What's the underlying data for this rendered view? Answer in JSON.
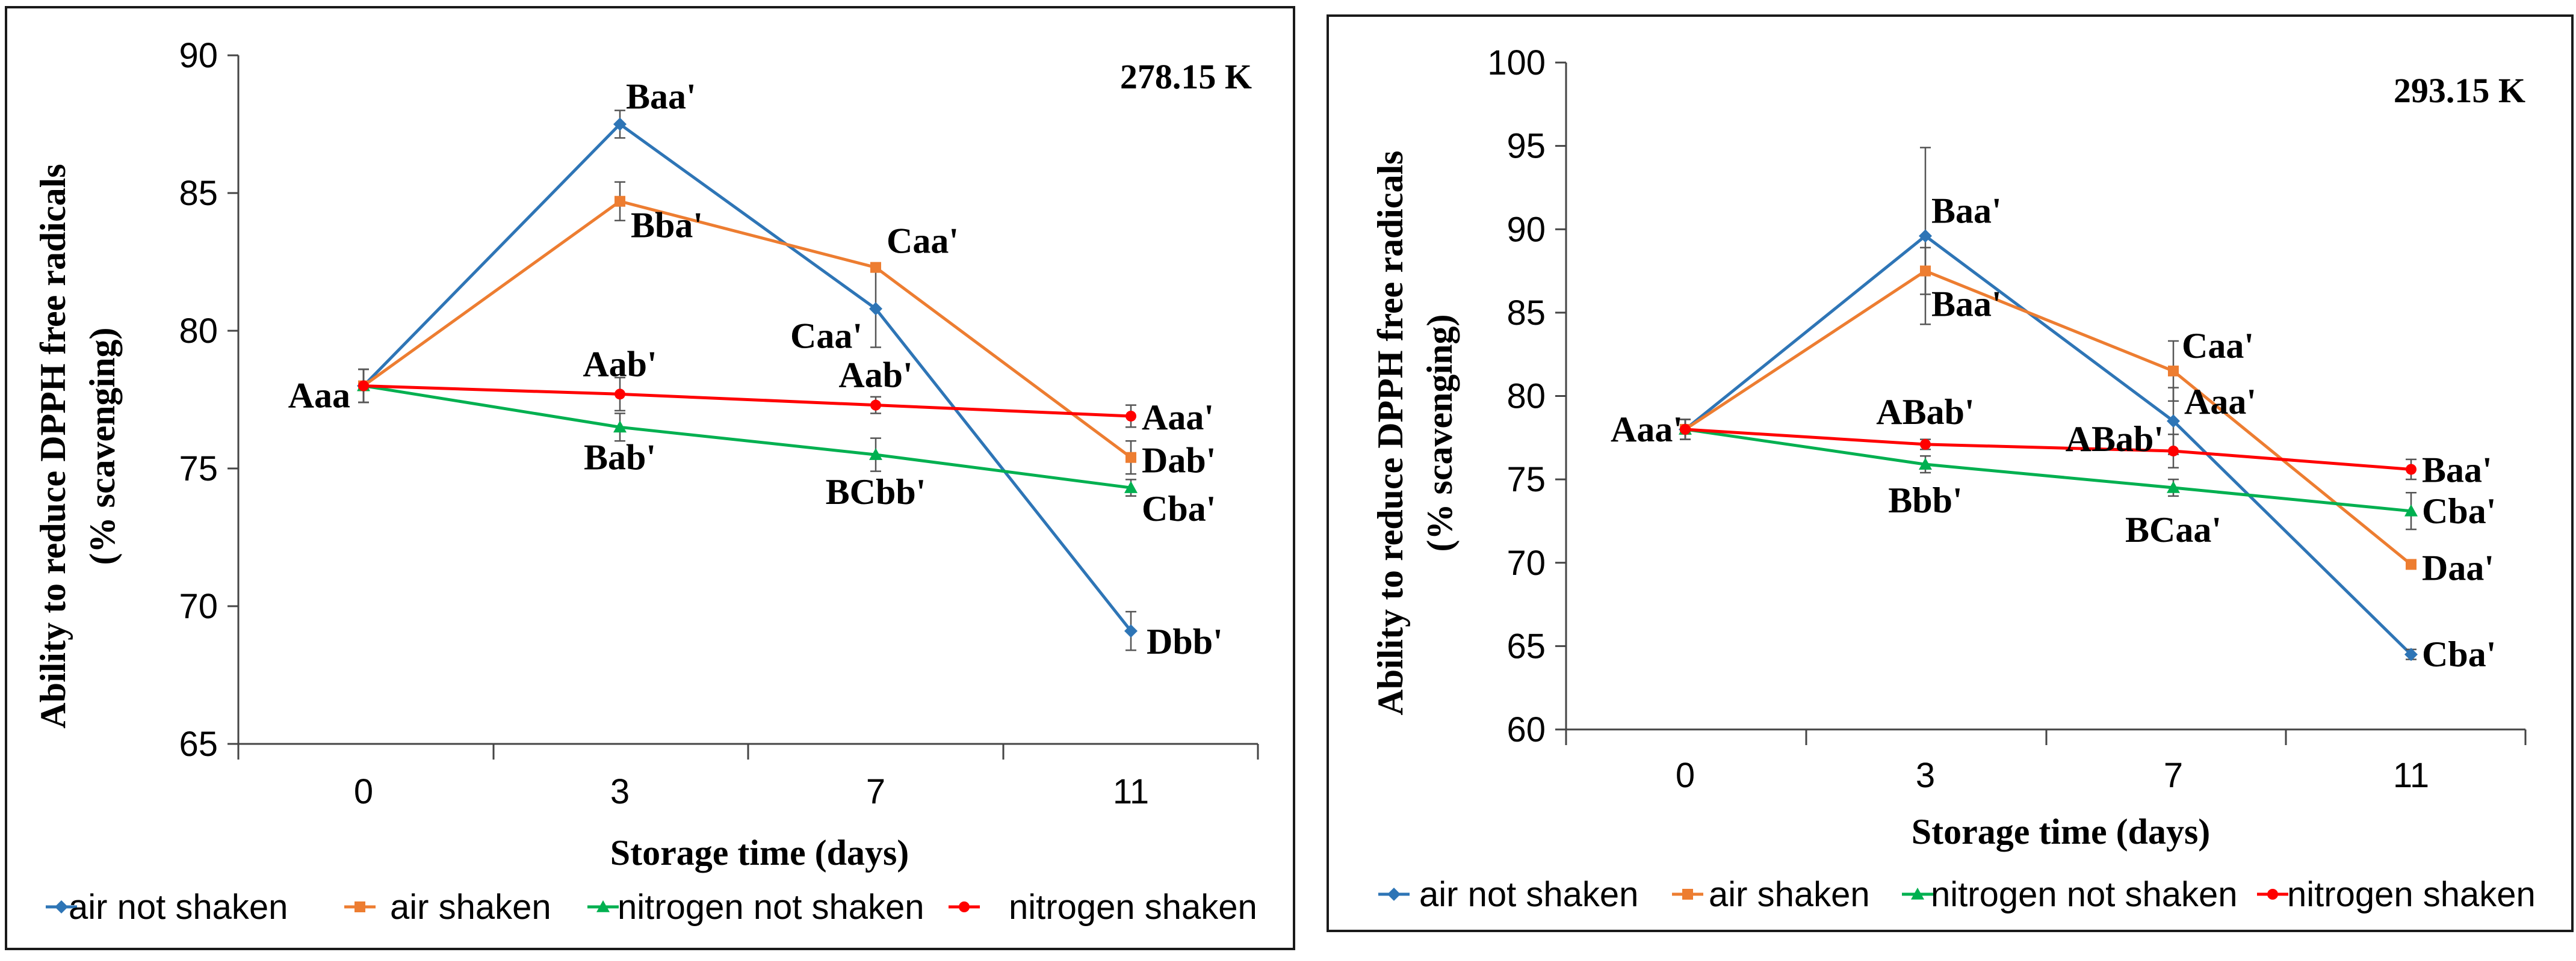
{
  "chart_data": [
    {
      "type": "line",
      "title": "278.15 K",
      "xlabel": "Storage time (days)",
      "ylabel": [
        "Ability to reduce DPPH free radicals",
        "(% scavenging)"
      ],
      "categories": [
        "0",
        "3",
        "7",
        "11"
      ],
      "ylim": [
        65,
        90
      ],
      "yticks": [
        "65",
        "70",
        "75",
        "80",
        "85",
        "90"
      ],
      "series": [
        {
          "name": "air not shaken",
          "color": "#2E75B6",
          "marker": "diamond",
          "values": [
            78.0,
            87.5,
            80.8,
            69.1
          ],
          "errors": [
            0.6,
            0.5,
            1.4,
            0.7
          ],
          "labels": [
            "",
            "Baa'",
            "Caa'",
            "Dbb'"
          ]
        },
        {
          "name": "air shaken",
          "color": "#ED7D31",
          "marker": "square",
          "values": [
            78.0,
            84.7,
            82.3,
            75.4
          ],
          "errors": [
            0.6,
            0.7,
            0.0,
            0.6
          ],
          "labels": [
            "",
            "Bba'",
            "Caa'",
            "Dab'"
          ]
        },
        {
          "name": "nitrogen not shaken",
          "color": "#00B050",
          "marker": "triangle",
          "values": [
            78.0,
            76.5,
            75.5,
            74.3
          ],
          "errors": [
            0.6,
            0.5,
            0.6,
            0.3
          ],
          "labels": [
            "",
            "Bab'",
            "BCbb'",
            "Cba'"
          ]
        },
        {
          "name": "nitrogen shaken",
          "color": "#FF0000",
          "marker": "circle",
          "values": [
            78.0,
            77.7,
            77.3,
            76.9
          ],
          "errors": [
            0.6,
            0.6,
            0.3,
            0.4
          ],
          "labels": [
            "Aaa",
            "Aab'",
            "Aab'",
            "Aaa'"
          ]
        }
      ]
    },
    {
      "type": "line",
      "title": "293.15 K",
      "xlabel": "Storage time (days)",
      "ylabel": [
        "Ability to reduce DPPH free radicals",
        "(% scavenging)"
      ],
      "categories": [
        "0",
        "3",
        "7",
        "11"
      ],
      "ylim": [
        60,
        100
      ],
      "yticks": [
        "60",
        "65",
        "70",
        "75",
        "80",
        "85",
        "90",
        "95",
        "100"
      ],
      "series": [
        {
          "name": "air not shaken",
          "color": "#2E75B6",
          "marker": "diamond",
          "values": [
            78.0,
            89.6,
            78.5,
            64.5
          ],
          "errors": [
            0.6,
            5.3,
            2.0,
            0.3
          ],
          "labels": [
            "",
            "Baa'",
            "Aaa'",
            "Cba'"
          ]
        },
        {
          "name": "air shaken",
          "color": "#ED7D31",
          "marker": "square",
          "values": [
            78.0,
            87.5,
            81.5,
            69.9
          ],
          "errors": [
            0.6,
            1.4,
            1.8,
            0.0
          ],
          "labels": [
            "",
            "Baa'",
            "Caa'",
            "Daa'"
          ]
        },
        {
          "name": "nitrogen not shaken",
          "color": "#00B050",
          "marker": "triangle",
          "values": [
            78.0,
            75.9,
            74.5,
            73.1
          ],
          "errors": [
            0.6,
            0.5,
            0.5,
            1.1
          ],
          "labels": [
            "",
            "Bbb'",
            "BCaa'",
            "Cba'"
          ]
        },
        {
          "name": "nitrogen shaken",
          "color": "#FF0000",
          "marker": "circle",
          "values": [
            78.0,
            77.1,
            76.7,
            75.6
          ],
          "errors": [
            0.6,
            0.3,
            1.0,
            0.6
          ],
          "labels": [
            "Aaa'",
            "ABab'",
            "ABab'",
            "Baa'"
          ]
        }
      ]
    }
  ]
}
